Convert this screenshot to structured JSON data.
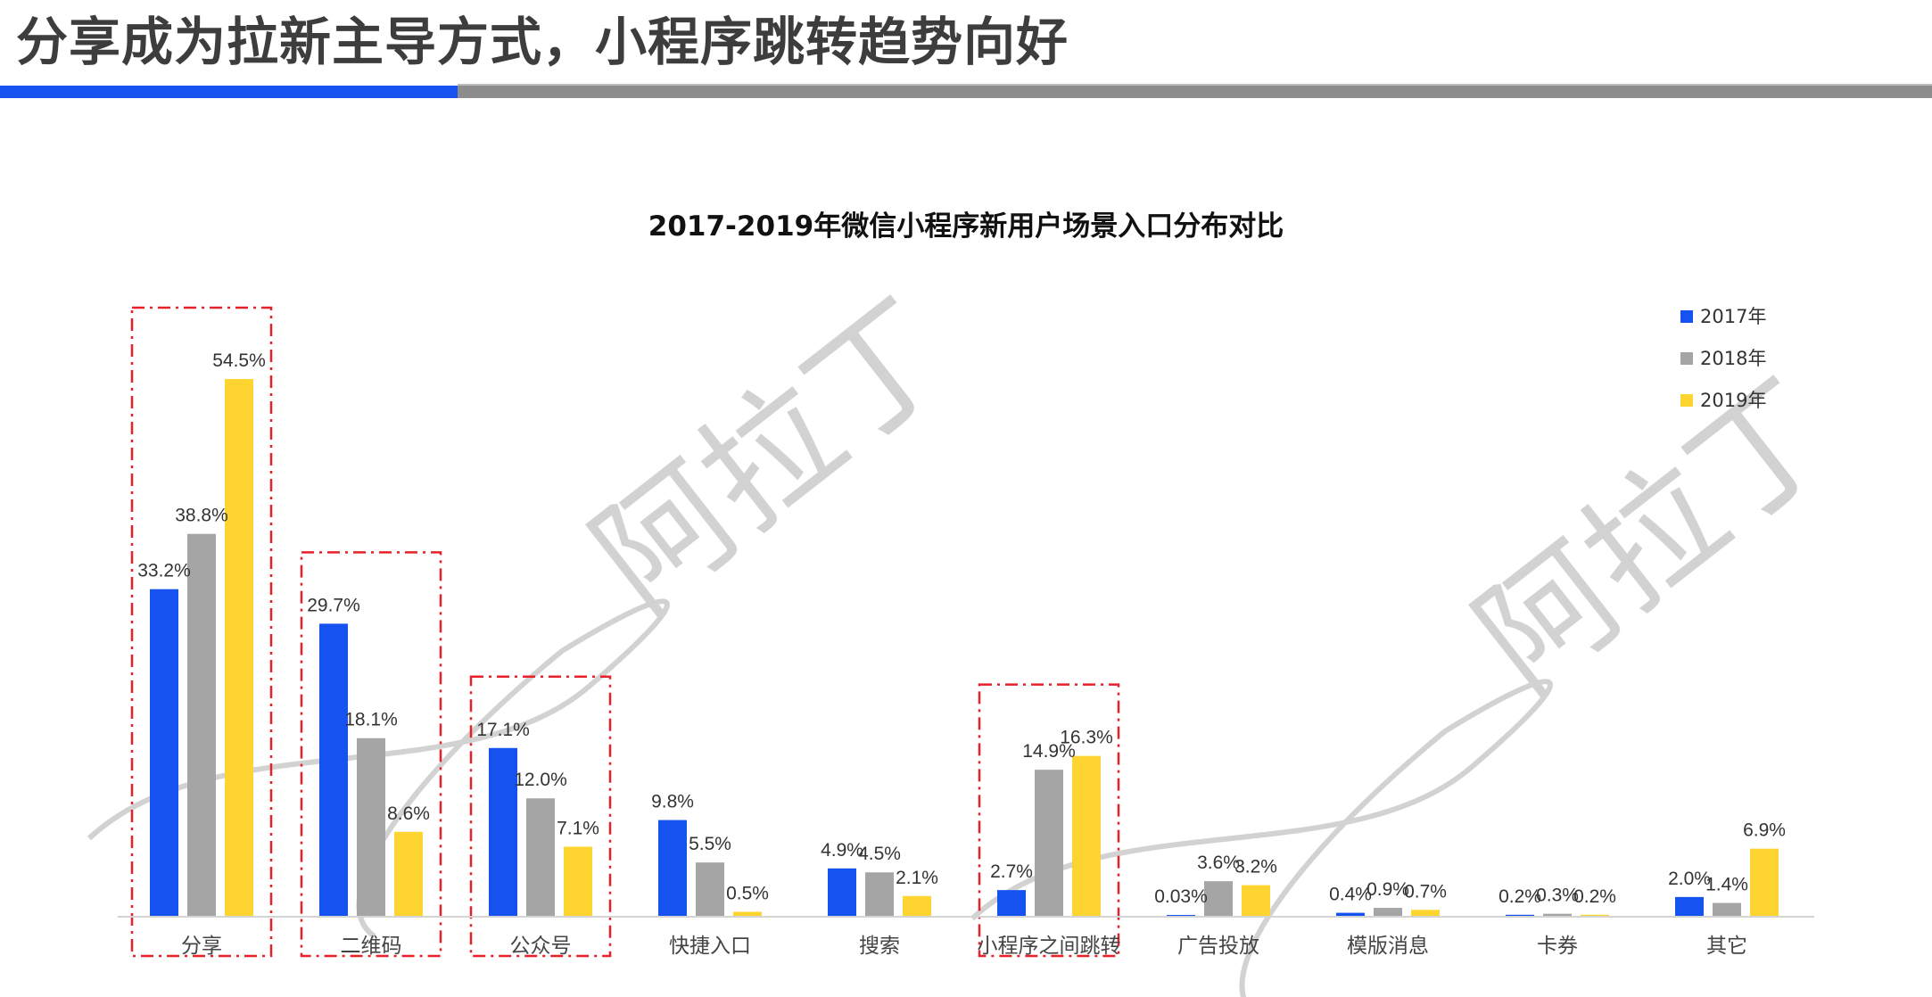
{
  "slide": {
    "title": "分享成为拉新主导方式，小程序跳转趋势向好",
    "watermark_text": "阿拉丁",
    "accent_colors": {
      "blue": "#1652f0",
      "gray": "#8d8d8d"
    }
  },
  "chart_data": {
    "type": "bar",
    "title": "2017-2019年微信小程序新用户场景入口分布对比",
    "xlabel": "",
    "ylabel": "",
    "ylim": [
      0,
      60
    ],
    "grid": false,
    "legend_position": "top-right",
    "categories": [
      "分享",
      "二维码",
      "公众号",
      "快捷入口",
      "搜索",
      "小程序之间跳转",
      "广告投放",
      "模版消息",
      "卡券",
      "其它"
    ],
    "highlighted_categories": [
      "分享",
      "二维码",
      "公众号",
      "小程序之间跳转"
    ],
    "series": [
      {
        "name": "2017年",
        "color": "#1652f0",
        "values": [
          33.2,
          29.7,
          17.1,
          9.8,
          4.9,
          2.7,
          0.03,
          0.4,
          0.2,
          2.0
        ],
        "labels": [
          "33.2%",
          "29.7%",
          "17.1%",
          "9.8%",
          "4.9%",
          "2.7%",
          "0.03%",
          "0.4%",
          "0.2%",
          "2.0%"
        ]
      },
      {
        "name": "2018年",
        "color": "#a5a5a5",
        "values": [
          38.8,
          18.1,
          12.0,
          5.5,
          4.5,
          14.9,
          3.6,
          0.9,
          0.3,
          1.4
        ],
        "labels": [
          "38.8%",
          "18.1%",
          "12.0%",
          "5.5%",
          "4.5%",
          "14.9%",
          "3.6%",
          "0.9%",
          "0.3%",
          "1.4%"
        ]
      },
      {
        "name": "2019年",
        "color": "#fdd430",
        "values": [
          54.5,
          8.6,
          7.1,
          0.5,
          2.1,
          16.3,
          3.2,
          0.7,
          0.2,
          6.9
        ],
        "labels": [
          "54.5%",
          "8.6%",
          "7.1%",
          "0.5%",
          "2.1%",
          "16.3%",
          "3.2%",
          "0.7%",
          "0.2%",
          "6.9%"
        ]
      }
    ]
  }
}
